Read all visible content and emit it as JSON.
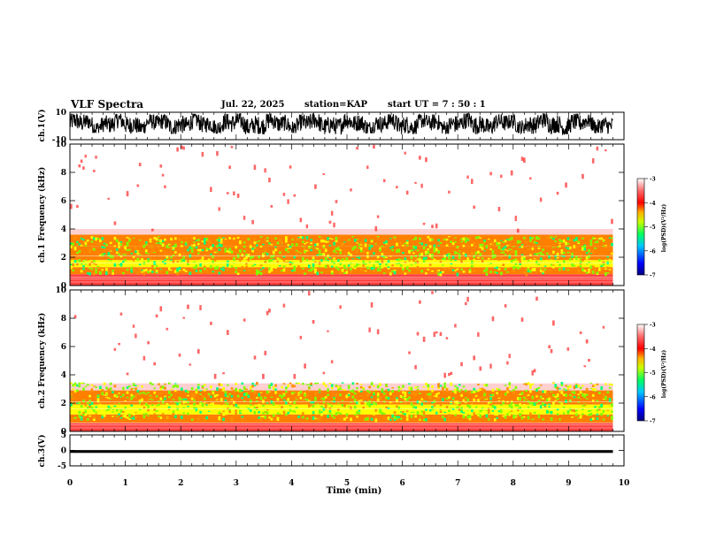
{
  "header": {
    "title": "VLF Spectra",
    "date": "Jul. 22, 2025",
    "station": "station=KAP",
    "start_ut": "start UT =  7 : 50 : 1"
  },
  "colors": {
    "axis": "#000000",
    "colormap": [
      "#000080",
      "#0000ff",
      "#00c8ff",
      "#00ff80",
      "#80ff00",
      "#ffff00",
      "#ff8000",
      "#ff0000",
      "#ff4040",
      "#ffd0d0",
      "#ffffff"
    ]
  },
  "chart_data": [
    {
      "type": "line",
      "panel": "waveform-ch1",
      "ylabel": "ch.1(V)",
      "ylim": [
        -10,
        10
      ],
      "y_ticks": [
        "10",
        "-10"
      ],
      "xlim": [
        0,
        10
      ],
      "data_end_min": 9.8,
      "description_of_series": "dense noisy voltage trace oscillating roughly between -6 and 9 V",
      "series": [
        {
          "x": [
            0,
            0.5,
            1,
            1.5,
            2,
            2.5,
            3,
            3.5,
            4,
            4.5,
            5,
            5.5,
            6,
            6.5,
            7,
            7.5,
            8,
            8.5,
            9,
            9.5,
            9.8
          ],
          "y_min": [
            -6,
            -5,
            -6,
            -5,
            -6,
            -5,
            -6,
            -6,
            -5,
            -6,
            -6,
            -5,
            -6,
            -5,
            -6,
            -6,
            -5,
            -6,
            -6,
            -5,
            -6
          ],
          "y_max": [
            9,
            8,
            9,
            8,
            9,
            8,
            9,
            9,
            8,
            9,
            9,
            8,
            9,
            8,
            9,
            9,
            8,
            9,
            9,
            8,
            9
          ]
        }
      ]
    },
    {
      "type": "heatmap",
      "panel": "spectrogram-ch1",
      "ylabel": "ch.1 Frequency (kHz)",
      "ylim": [
        0,
        10
      ],
      "y_ticks": [
        "0",
        "2",
        "4",
        "6",
        "8",
        "10"
      ],
      "xlim": [
        0,
        10
      ],
      "data_end_min": 9.8,
      "bands_khz": [
        {
          "from": 0.0,
          "to": 0.8,
          "level": -4.0
        },
        {
          "from": 0.8,
          "to": 1.3,
          "level": -4.6
        },
        {
          "from": 1.3,
          "to": 1.8,
          "level": -5.2
        },
        {
          "from": 1.8,
          "to": 2.8,
          "level": -4.4
        },
        {
          "from": 2.8,
          "to": 3.6,
          "level": -4.5
        },
        {
          "from": 3.6,
          "to": 4.0,
          "level": -3.6
        },
        {
          "from": 4.0,
          "to": 10.0,
          "level": -3.2
        }
      ]
    },
    {
      "type": "heatmap",
      "panel": "spectrogram-ch2",
      "ylabel": "ch.2 Frequency (kHz)",
      "ylim": [
        0,
        10
      ],
      "y_ticks": [
        "0",
        "2",
        "4",
        "6",
        "8",
        "10"
      ],
      "xlim": [
        0,
        10
      ],
      "data_end_min": 9.8,
      "bands_khz": [
        {
          "from": 0.0,
          "to": 0.6,
          "level": -4.0
        },
        {
          "from": 0.6,
          "to": 1.2,
          "level": -4.7
        },
        {
          "from": 1.2,
          "to": 1.9,
          "level": -5.0
        },
        {
          "from": 1.9,
          "to": 2.9,
          "level": -4.4
        },
        {
          "from": 2.9,
          "to": 3.4,
          "level": -3.6
        },
        {
          "from": 3.4,
          "to": 10.0,
          "level": -3.1
        }
      ]
    },
    {
      "type": "line",
      "panel": "waveform-ch3",
      "ylabel": "ch.3(V)",
      "ylim": [
        -5,
        5
      ],
      "y_ticks": [
        "5",
        "0",
        "-5"
      ],
      "xlim": [
        0,
        10
      ],
      "data_end_min": 9.8,
      "series": [
        {
          "x": [
            0,
            9.8
          ],
          "y_min": [
            -0.8,
            -0.8
          ],
          "y_max": [
            0.1,
            0.1
          ]
        }
      ]
    }
  ],
  "colorbars": [
    {
      "label": "log(PSD)(V²/Hz)",
      "ticks": [
        "-3",
        "-4",
        "-5",
        "-6",
        "-7"
      ],
      "range": [
        -7,
        -3
      ]
    },
    {
      "label": "log(PSD)(V²/Hz)",
      "ticks": [
        "-3",
        "-4",
        "-5",
        "-6",
        "-7"
      ],
      "range": [
        -7,
        -3
      ]
    }
  ],
  "x_axis": {
    "label": "Time (min)",
    "ticks": [
      "0",
      "1",
      "2",
      "3",
      "4",
      "5",
      "6",
      "7",
      "8",
      "9",
      "10"
    ]
  }
}
